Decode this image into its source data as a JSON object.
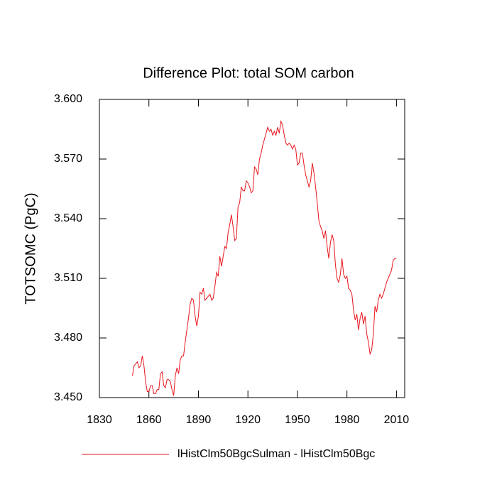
{
  "chart_data": {
    "type": "line",
    "title": "Difference Plot: total SOM carbon",
    "y_label": "TOTSOMC  (PgC)",
    "x": [
      1850,
      1851,
      1852,
      1853,
      1854,
      1855,
      1856,
      1857,
      1858,
      1859,
      1860,
      1861,
      1862,
      1863,
      1864,
      1865,
      1866,
      1867,
      1868,
      1869,
      1870,
      1871,
      1872,
      1873,
      1874,
      1875,
      1876,
      1877,
      1878,
      1879,
      1880,
      1881,
      1882,
      1883,
      1884,
      1885,
      1886,
      1887,
      1888,
      1889,
      1890,
      1891,
      1892,
      1893,
      1894,
      1895,
      1896,
      1897,
      1898,
      1899,
      1900,
      1901,
      1902,
      1903,
      1904,
      1905,
      1906,
      1907,
      1908,
      1909,
      1910,
      1911,
      1912,
      1913,
      1914,
      1915,
      1916,
      1917,
      1918,
      1919,
      1920,
      1921,
      1922,
      1923,
      1924,
      1925,
      1926,
      1927,
      1928,
      1929,
      1930,
      1931,
      1932,
      1933,
      1934,
      1935,
      1936,
      1937,
      1938,
      1939,
      1940,
      1941,
      1942,
      1943,
      1944,
      1945,
      1946,
      1947,
      1948,
      1949,
      1950,
      1951,
      1952,
      1953,
      1954,
      1955,
      1956,
      1957,
      1958,
      1959,
      1960,
      1961,
      1962,
      1963,
      1964,
      1965,
      1966,
      1967,
      1968,
      1969,
      1970,
      1971,
      1972,
      1973,
      1974,
      1975,
      1976,
      1977,
      1978,
      1979,
      1980,
      1981,
      1982,
      1983,
      1984,
      1985,
      1986,
      1987,
      1988,
      1989,
      1990,
      1991,
      1992,
      1993,
      1994,
      1995,
      1996,
      1997,
      1998,
      1999,
      2000,
      2001,
      2002,
      2003,
      2004,
      2005,
      2006,
      2007,
      2008,
      2009,
      2010
    ],
    "series": [
      {
        "name": "lHistClm50BgcSulman - lHistClm50Bgc",
        "color": "#e8141c",
        "values": [
          3.461,
          3.466,
          3.467,
          3.468,
          3.465,
          3.466,
          3.471,
          3.466,
          3.458,
          3.453,
          3.453,
          3.456,
          3.456,
          3.452,
          3.452,
          3.454,
          3.454,
          3.462,
          3.463,
          3.456,
          3.455,
          3.459,
          3.459,
          3.458,
          3.454,
          3.451,
          3.461,
          3.465,
          3.462,
          3.469,
          3.471,
          3.471,
          3.478,
          3.484,
          3.49,
          3.497,
          3.5,
          3.499,
          3.491,
          3.486,
          3.491,
          3.503,
          3.502,
          3.505,
          3.499,
          3.5,
          3.501,
          3.502,
          3.499,
          3.5,
          3.506,
          3.513,
          3.511,
          3.521,
          3.516,
          3.521,
          3.526,
          3.525,
          3.533,
          3.537,
          3.542,
          3.536,
          3.529,
          3.53,
          3.546,
          3.548,
          3.556,
          3.554,
          3.554,
          3.559,
          3.558,
          3.556,
          3.553,
          3.554,
          3.566,
          3.565,
          3.562,
          3.57,
          3.573,
          3.577,
          3.58,
          3.583,
          3.586,
          3.584,
          3.585,
          3.582,
          3.584,
          3.582,
          3.586,
          3.583,
          3.589,
          3.587,
          3.582,
          3.578,
          3.577,
          3.578,
          3.577,
          3.575,
          3.577,
          3.575,
          3.567,
          3.568,
          3.573,
          3.573,
          3.567,
          3.562,
          3.559,
          3.556,
          3.559,
          3.568,
          3.563,
          3.556,
          3.548,
          3.539,
          3.536,
          3.534,
          3.53,
          3.534,
          3.526,
          3.52,
          3.528,
          3.532,
          3.529,
          3.517,
          3.51,
          3.508,
          3.512,
          3.52,
          3.512,
          3.51,
          3.511,
          3.505,
          3.504,
          3.502,
          3.494,
          3.489,
          3.492,
          3.484,
          3.49,
          3.493,
          3.487,
          3.491,
          3.482,
          3.478,
          3.472,
          3.474,
          3.482,
          3.496,
          3.493,
          3.499,
          3.502,
          3.5,
          3.502,
          3.505,
          3.508,
          3.51,
          3.512,
          3.514,
          3.519,
          3.52,
          3.52
        ]
      }
    ],
    "xlim": [
      1830,
      2015
    ],
    "ylim": [
      3.45,
      3.6
    ],
    "xticks": [
      1830,
      1860,
      1890,
      1920,
      1950,
      1980,
      2010
    ],
    "yticks": [
      {
        "value": 3.45,
        "label": "3.450"
      },
      {
        "value": 3.48,
        "label": "3.480"
      },
      {
        "value": 3.51,
        "label": "3.510"
      },
      {
        "value": 3.54,
        "label": "3.540"
      },
      {
        "value": 3.57,
        "label": "3.570"
      },
      {
        "value": 3.6,
        "label": "3.600"
      }
    ],
    "legend": "bottom"
  }
}
